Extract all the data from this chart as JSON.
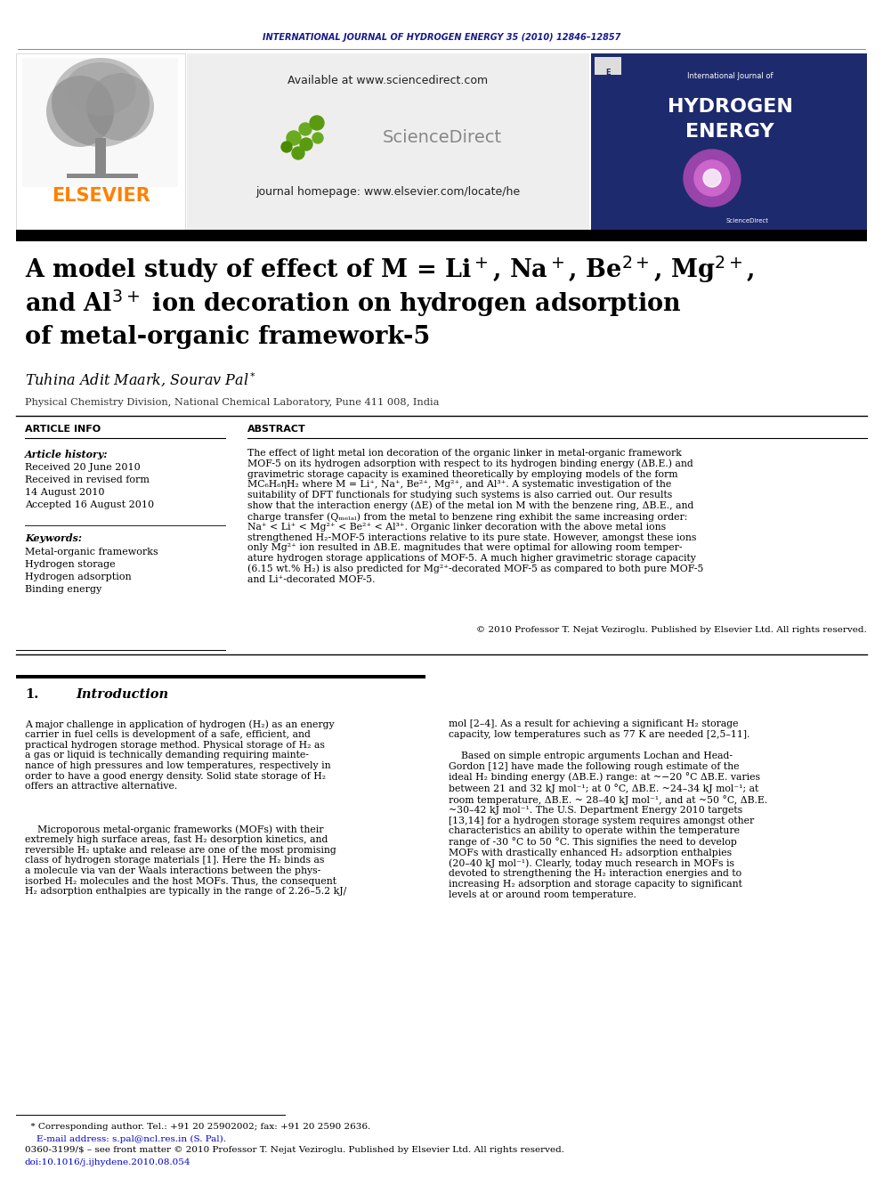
{
  "journal_header": "INTERNATIONAL JOURNAL OF HYDROGEN ENERGY 35 (2010) 12846–12857",
  "journal_header_color": "#1a1a8c",
  "elsevier_color": "#FF8000",
  "available_text": "Available at www.sciencedirect.com",
  "journal_homepage": "journal homepage: www.elsevier.com/locate/he",
  "sciencedirect_text": "ScienceDirect",
  "affiliation": "Physical Chemistry Division, National Chemical Laboratory, Pune 411 008, India",
  "article_info_header": "ARTICLE INFO",
  "article_history_header": "Article history:",
  "received1": "Received 20 June 2010",
  "received2": "Received in revised form",
  "received2b": "14 August 2010",
  "accepted": "Accepted 16 August 2010",
  "keywords_header": "Keywords:",
  "kw1": "Metal-organic frameworks",
  "kw2": "Hydrogen storage",
  "kw3": "Hydrogen adsorption",
  "kw4": "Binding energy",
  "abstract_header": "ABSTRACT",
  "abstract_text": "The effect of light metal ion decoration of the organic linker in metal-organic framework\nMOF-5 on its hydrogen adsorption with respect to its hydrogen binding energy (ΔB.E.) and\ngravimetric storage capacity is examined theoretically by employing models of the form\nMC₆H₆ηH₂ where M = Li⁺, Na⁺, Be²⁺, Mg²⁺, and Al³⁺. A systematic investigation of the\nsuitability of DFT functionals for studying such systems is also carried out. Our results\nshow that the interaction energy (ΔE) of the metal ion M with the benzene ring, ΔB.E., and\ncharge transfer (Qₘₑₗₐₗ) from the metal to benzene ring exhibit the same increasing order:\nNa⁺ < Li⁺ < Mg²⁺ < Be²⁺ < Al³⁺. Organic linker decoration with the above metal ions\nstrengthened H₂-MOF-5 interactions relative to its pure state. However, amongst these ions\nonly Mg²⁺ ion resulted in ΔB.E. magnitudes that were optimal for allowing room temper-\nature hydrogen storage applications of MOF-5. A much higher gravimetric storage capacity\n(6.15 wt.% H₂) is also predicted for Mg²⁺-decorated MOF-5 as compared to both pure MOF-5\nand Li⁺-decorated MOF-5.",
  "copyright_text": "© 2010 Professor T. Nejat Veziroglu. Published by Elsevier Ltd. All rights reserved.",
  "section1_header": "1.",
  "section1_title": "Introduction",
  "intro_col1_p1": "A major challenge in application of hydrogen (H₂) as an energy\ncarrier in fuel cells is development of a safe, efficient, and\npractical hydrogen storage method. Physical storage of H₂ as\na gas or liquid is technically demanding requiring mainte-\nnance of high pressures and low temperatures, respectively in\norder to have a good energy density. Solid state storage of H₂\noffers an attractive alternative.",
  "intro_col1_p2": "    Microporous metal-organic frameworks (MOFs) with their\nextremely high surface areas, fast H₂ desorption kinetics, and\nreversible H₂ uptake and release are one of the most promising\nclass of hydrogen storage materials [1]. Here the H₂ binds as\na molecule via van der Waals interactions between the phys-\nisorbed H₂ molecules and the host MOFs. Thus, the consequent\nH₂ adsorption enthalpies are typically in the range of 2.26–5.2 kJ/",
  "intro_col2_p1": "mol [2–4]. As a result for achieving a significant H₂ storage\ncapacity, low temperatures such as 77 K are needed [2,5–11].",
  "intro_col2_p2": "    Based on simple entropic arguments Lochan and Head-\nGordon [12] have made the following rough estimate of the\nideal H₂ binding energy (ΔB.E.) range: at ~−20 °C ΔB.E. varies\nbetween 21 and 32 kJ mol⁻¹; at 0 °C, ΔB.E. ~24–34 kJ mol⁻¹; at\nroom temperature, ΔB.E. ~ 28–40 kJ mol⁻¹, and at ~50 °C, ΔB.E.\n~30–42 kJ mol⁻¹. The U.S. Department Energy 2010 targets\n[13,14] for a hydrogen storage system requires amongst other\ncharacteristics an ability to operate within the temperature\nrange of -30 °C to 50 °C. This signifies the need to develop\nMOFs with drastically enhanced H₂ adsorption enthalpies\n(20–40 kJ mol⁻¹). Clearly, today much research in MOFs is\ndevoted to strengthening the H₂ interaction energies and to\nincreasing H₂ adsorption and storage capacity to significant\nlevels at or around room temperature.",
  "footnote_star": "  * Corresponding author. Tel.: +91 20 25902002; fax: +91 20 2590 2636.",
  "footnote_email": "    E-mail address: s.pal@ncl.res.in (S. Pal).",
  "footnote_issn": "0360-3199/$ – see front matter © 2010 Professor T. Nejat Veziroglu. Published by Elsevier Ltd. All rights reserved.",
  "footnote_doi": "doi:10.1016/j.ijhydene.2010.08.054",
  "bg_color": "#ffffff",
  "text_color": "#000000",
  "link_color": "#0000cc"
}
